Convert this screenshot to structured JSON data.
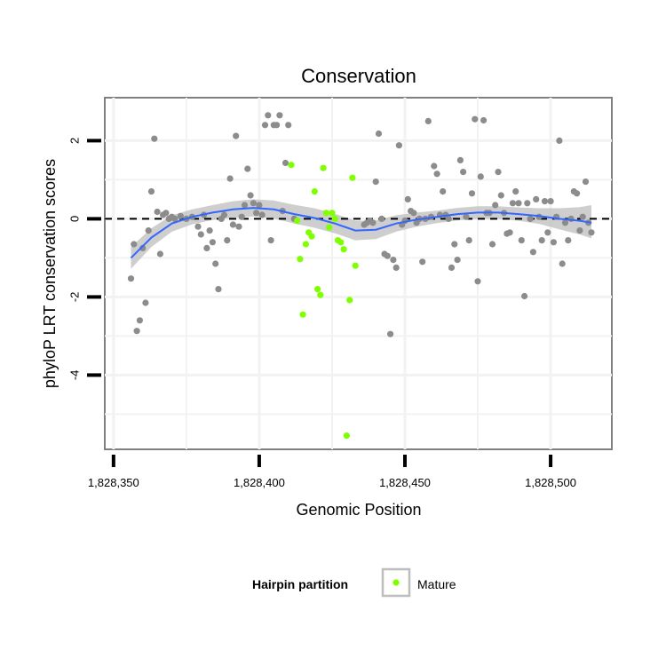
{
  "chart_data": {
    "type": "scatter",
    "title": "Conservation",
    "xlabel": "Genomic Position",
    "ylabel": "phyloP LRT conservation scores",
    "xlim": [
      1828347,
      1828521
    ],
    "ylim": [
      -5.9,
      3.1
    ],
    "x_ticks": [
      1828350,
      1828400,
      1828450,
      1828500
    ],
    "x_tick_labels": [
      "1,828,350",
      "1,828,400",
      "1,828,450",
      "1,828,500"
    ],
    "y_ticks": [
      2,
      0,
      -2,
      -4
    ],
    "y_tick_labels": [
      "2",
      "0",
      "-2",
      "-4"
    ],
    "grid": true,
    "reference_line": {
      "y": 0,
      "style": "dashed"
    },
    "legend": {
      "title": "Hairpin partition",
      "placement": "bottom",
      "entries": [
        {
          "label": "Mature",
          "color": "#7fff00"
        }
      ]
    },
    "colors": {
      "other": "#8c8c8c",
      "mature": "#7fff00",
      "smooth": "#3366ff",
      "band": "#bdbdbd",
      "panel_border": "#7f7f7f",
      "grid": "#f2f2f2"
    },
    "series": [
      {
        "group": "other",
        "points": [
          [
            1828356,
            -1.53
          ],
          [
            1828357,
            -0.65
          ],
          [
            1828358,
            -2.87
          ],
          [
            1828359,
            -2.6
          ],
          [
            1828360,
            -0.75
          ],
          [
            1828361,
            -2.15
          ],
          [
            1828362,
            -0.3
          ],
          [
            1828363,
            0.7
          ],
          [
            1828364,
            2.05
          ],
          [
            1828365,
            0.18
          ],
          [
            1828366,
            -0.9
          ],
          [
            1828367,
            0.1
          ],
          [
            1828368,
            0.15
          ],
          [
            1828369,
            0.0
          ],
          [
            1828370,
            0.05
          ],
          [
            1828371,
            0.0
          ],
          [
            1828373,
            0.07
          ],
          [
            1828375,
            0.0
          ],
          [
            1828377,
            0.05
          ],
          [
            1828379,
            -0.2
          ],
          [
            1828380,
            -0.4
          ],
          [
            1828381,
            0.1
          ],
          [
            1828382,
            -0.75
          ],
          [
            1828383,
            -0.3
          ],
          [
            1828384,
            -0.6
          ],
          [
            1828385,
            -1.15
          ],
          [
            1828386,
            -1.8
          ],
          [
            1828387,
            0.0
          ],
          [
            1828388,
            0.1
          ],
          [
            1828389,
            -0.55
          ],
          [
            1828390,
            1.03
          ],
          [
            1828391,
            -0.15
          ],
          [
            1828392,
            2.12
          ],
          [
            1828393,
            -0.2
          ],
          [
            1828394,
            0.05
          ],
          [
            1828395,
            0.35
          ],
          [
            1828396,
            1.28
          ],
          [
            1828397,
            0.6
          ],
          [
            1828398,
            0.4
          ],
          [
            1828399,
            0.15
          ],
          [
            1828400,
            0.35
          ],
          [
            1828401,
            0.1
          ],
          [
            1828402,
            2.4
          ],
          [
            1828403,
            2.65
          ],
          [
            1828404,
            -0.55
          ],
          [
            1828405,
            2.4
          ],
          [
            1828406,
            2.4
          ],
          [
            1828407,
            2.65
          ],
          [
            1828408,
            0.2
          ],
          [
            1828409,
            1.43
          ],
          [
            1828410,
            2.4
          ],
          [
            1828412,
            0.0
          ],
          [
            1828436,
            -0.15
          ],
          [
            1828437,
            -0.1
          ],
          [
            1828438,
            -0.05
          ],
          [
            1828439,
            -0.1
          ],
          [
            1828440,
            0.95
          ],
          [
            1828441,
            2.18
          ],
          [
            1828442,
            0.0
          ],
          [
            1828443,
            -0.9
          ],
          [
            1828444,
            -0.95
          ],
          [
            1828445,
            -2.95
          ],
          [
            1828446,
            -1.05
          ],
          [
            1828447,
            -1.25
          ],
          [
            1828448,
            1.88
          ],
          [
            1828449,
            -0.15
          ],
          [
            1828450,
            -0.05
          ],
          [
            1828451,
            0.5
          ],
          [
            1828452,
            0.2
          ],
          [
            1828453,
            0.15
          ],
          [
            1828454,
            -0.1
          ],
          [
            1828455,
            0.0
          ],
          [
            1828456,
            -1.1
          ],
          [
            1828457,
            0.0
          ],
          [
            1828458,
            2.5
          ],
          [
            1828459,
            0.05
          ],
          [
            1828460,
            1.35
          ],
          [
            1828461,
            1.15
          ],
          [
            1828462,
            0.1
          ],
          [
            1828463,
            0.7
          ],
          [
            1828464,
            0.1
          ],
          [
            1828465,
            0.0
          ],
          [
            1828466,
            -1.25
          ],
          [
            1828467,
            -0.65
          ],
          [
            1828468,
            -1.05
          ],
          [
            1828469,
            1.5
          ],
          [
            1828470,
            1.2
          ],
          [
            1828471,
            0.05
          ],
          [
            1828472,
            -0.55
          ],
          [
            1828473,
            0.65
          ],
          [
            1828474,
            2.55
          ],
          [
            1828475,
            -1.6
          ],
          [
            1828476,
            1.08
          ],
          [
            1828477,
            2.52
          ],
          [
            1828478,
            0.15
          ],
          [
            1828479,
            0.15
          ],
          [
            1828480,
            -0.65
          ],
          [
            1828481,
            0.35
          ],
          [
            1828482,
            1.2
          ],
          [
            1828483,
            0.6
          ],
          [
            1828484,
            0.15
          ],
          [
            1828485,
            -0.38
          ],
          [
            1828486,
            -0.35
          ],
          [
            1828487,
            0.4
          ],
          [
            1828488,
            0.7
          ],
          [
            1828489,
            0.4
          ],
          [
            1828490,
            -0.55
          ],
          [
            1828491,
            -1.98
          ],
          [
            1828492,
            0.4
          ],
          [
            1828493,
            0.0
          ],
          [
            1828494,
            -0.85
          ],
          [
            1828495,
            0.5
          ],
          [
            1828496,
            0.05
          ],
          [
            1828497,
            -0.55
          ],
          [
            1828498,
            0.45
          ],
          [
            1828499,
            -0.35
          ],
          [
            1828500,
            0.45
          ],
          [
            1828501,
            -0.6
          ],
          [
            1828502,
            0.05
          ],
          [
            1828503,
            2.0
          ],
          [
            1828504,
            -1.15
          ],
          [
            1828505,
            -0.1
          ],
          [
            1828506,
            -0.55
          ],
          [
            1828507,
            0.0
          ],
          [
            1828508,
            0.7
          ],
          [
            1828509,
            0.65
          ],
          [
            1828510,
            -0.3
          ],
          [
            1828511,
            0.05
          ],
          [
            1828512,
            0.95
          ],
          [
            1828513,
            -0.1
          ],
          [
            1828514,
            -0.35
          ]
        ]
      },
      {
        "group": "mature",
        "name": "Mature",
        "points": [
          [
            1828411,
            1.38
          ],
          [
            1828413,
            -0.05
          ],
          [
            1828414,
            -1.03
          ],
          [
            1828415,
            -2.45
          ],
          [
            1828416,
            -0.65
          ],
          [
            1828417,
            -0.35
          ],
          [
            1828418,
            -0.45
          ],
          [
            1828419,
            0.7
          ],
          [
            1828420,
            -1.8
          ],
          [
            1828421,
            -1.95
          ],
          [
            1828422,
            1.3
          ],
          [
            1828423,
            0.15
          ],
          [
            1828424,
            -0.22
          ],
          [
            1828425,
            0.15
          ],
          [
            1828426,
            0.0
          ],
          [
            1828427,
            -0.55
          ],
          [
            1828428,
            -0.6
          ],
          [
            1828429,
            -0.78
          ],
          [
            1828430,
            -5.55
          ],
          [
            1828431,
            -2.08
          ],
          [
            1828432,
            1.05
          ],
          [
            1828433,
            -1.2
          ]
        ]
      }
    ],
    "smooth": {
      "x": [
        1828356,
        1828363,
        1828370,
        1828377,
        1828384,
        1828391,
        1828398,
        1828405,
        1828412,
        1828419,
        1828426,
        1828433,
        1828440,
        1828447,
        1828454,
        1828461,
        1828468,
        1828475,
        1828482,
        1828489,
        1828496,
        1828503,
        1828510,
        1828514
      ],
      "y": [
        -1.0,
        -0.48,
        -0.12,
        0.05,
        0.16,
        0.24,
        0.28,
        0.24,
        0.12,
        0.02,
        -0.12,
        -0.3,
        -0.28,
        -0.12,
        -0.02,
        0.05,
        0.12,
        0.16,
        0.16,
        0.12,
        0.07,
        0.0,
        -0.05,
        -0.1
      ],
      "lower": [
        -1.28,
        -0.72,
        -0.33,
        -0.14,
        -0.03,
        0.03,
        0.06,
        0.01,
        -0.12,
        -0.23,
        -0.37,
        -0.55,
        -0.52,
        -0.33,
        -0.2,
        -0.11,
        -0.04,
        0.0,
        0.0,
        -0.05,
        -0.13,
        -0.27,
        -0.4,
        -0.5
      ],
      "upper": [
        -0.72,
        -0.24,
        0.09,
        0.24,
        0.35,
        0.45,
        0.5,
        0.47,
        0.36,
        0.27,
        0.13,
        -0.05,
        -0.04,
        0.09,
        0.16,
        0.21,
        0.28,
        0.32,
        0.32,
        0.29,
        0.27,
        0.27,
        0.3,
        0.35
      ]
    }
  }
}
